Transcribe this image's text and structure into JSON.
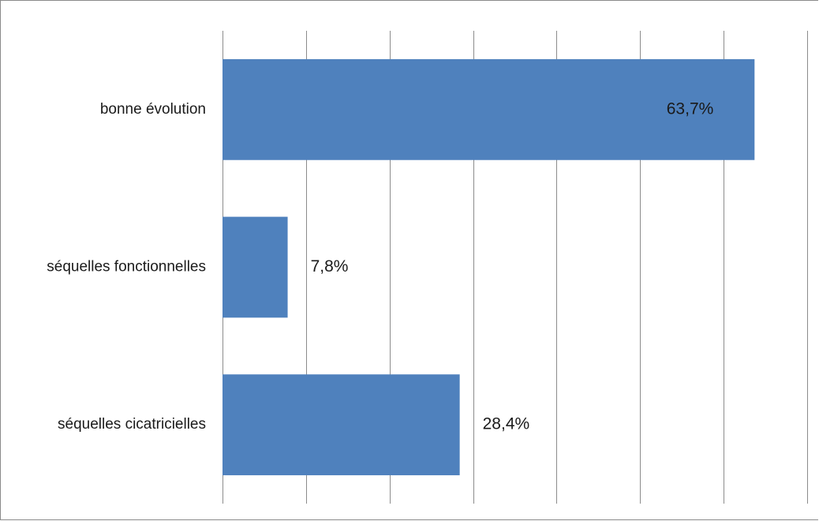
{
  "chart_data": {
    "type": "bar",
    "orientation": "horizontal",
    "categories": [
      "bonne évolution",
      "séquelles fonctionnelles",
      "séquelles cicatricielles"
    ],
    "values": [
      63.7,
      7.8,
      28.4
    ],
    "value_labels": [
      "63,7%",
      "7,8%",
      "28,4%"
    ],
    "unit": "%",
    "xlim": [
      0,
      70
    ],
    "x_gridline_step": 10,
    "grid": true,
    "legend": "none",
    "title": "",
    "xlabel": "",
    "ylabel": "",
    "colors": {
      "bar": "#4f81bd",
      "grid": "#8c8c8c",
      "border": "#8a8a8a"
    }
  }
}
